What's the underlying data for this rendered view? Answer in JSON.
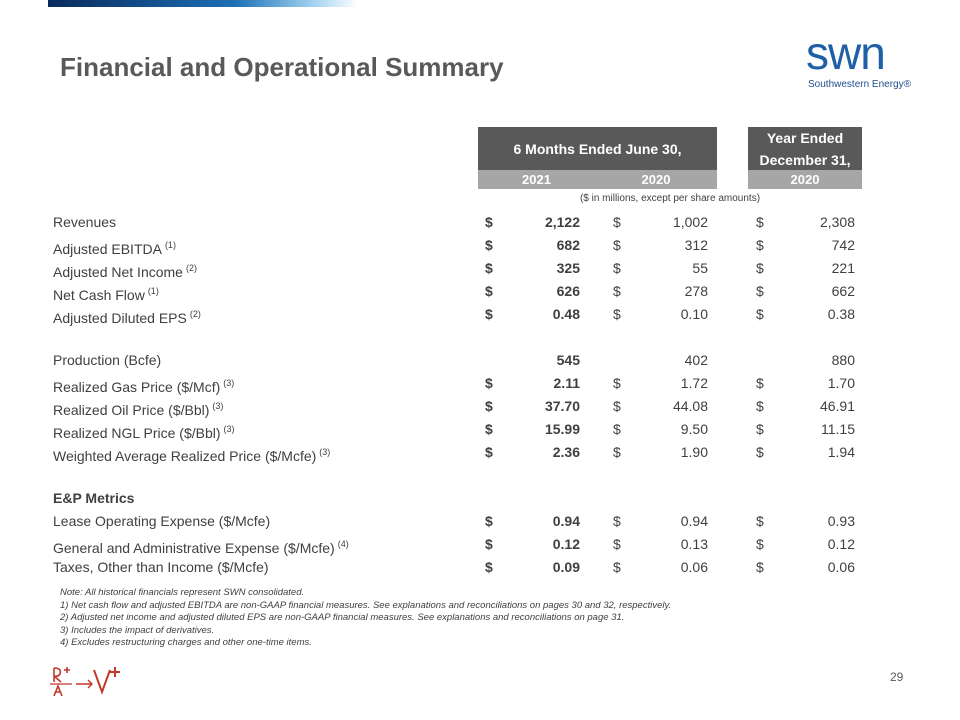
{
  "header": {
    "title": "Financial and Operational Summary",
    "logo": "swn",
    "logo_tagline": "Southwestern Energy®"
  },
  "table": {
    "group_headers": [
      "6 Months Ended June 30,",
      "Year Ended December 31,"
    ],
    "years": [
      "2021",
      "2020",
      "2020"
    ],
    "units_note": "($ in millions, except per share amounts)",
    "sections": [
      {
        "rows": [
          {
            "label": "Revenues",
            "cells": [
              {
                "currency": "$",
                "value": "2,122"
              },
              {
                "currency": "$",
                "value": "1,002"
              },
              {
                "currency": "$",
                "value": "2,308"
              }
            ]
          },
          {
            "label": "Adjusted EBITDA",
            "ref": "(1)",
            "cells": [
              {
                "currency": "$",
                "value": "682"
              },
              {
                "currency": "$",
                "value": "312"
              },
              {
                "currency": "$",
                "value": "742"
              }
            ]
          },
          {
            "label": "Adjusted Net Income",
            "ref": "(2)",
            "cells": [
              {
                "currency": "$",
                "value": "325"
              },
              {
                "currency": "$",
                "value": "55"
              },
              {
                "currency": "$",
                "value": "221"
              }
            ]
          },
          {
            "label": "Net Cash Flow",
            "ref": "(1)",
            "cells": [
              {
                "currency": "$",
                "value": "626"
              },
              {
                "currency": "$",
                "value": "278"
              },
              {
                "currency": "$",
                "value": "662"
              }
            ]
          },
          {
            "label": "Adjusted Diluted EPS",
            "ref": "(2)",
            "cells": [
              {
                "currency": "$",
                "value": "0.48"
              },
              {
                "currency": "$",
                "value": "0.10"
              },
              {
                "currency": "$",
                "value": "0.38"
              }
            ]
          }
        ]
      },
      {
        "rows": [
          {
            "label": "Production (Bcfe)",
            "cells": [
              {
                "value": "545"
              },
              {
                "value": "402"
              },
              {
                "value": "880"
              }
            ]
          },
          {
            "label": "Realized Gas Price ($/Mcf)",
            "ref": "(3)",
            "cells": [
              {
                "currency": "$",
                "value": "2.11"
              },
              {
                "currency": "$",
                "value": "1.72"
              },
              {
                "currency": "$",
                "value": "1.70"
              }
            ]
          },
          {
            "label": "Realized Oil Price ($/Bbl)",
            "ref": "(3)",
            "cells": [
              {
                "currency": "$",
                "value": "37.70"
              },
              {
                "currency": "$",
                "value": "44.08"
              },
              {
                "currency": "$",
                "value": "46.91"
              }
            ]
          },
          {
            "label": "Realized NGL Price ($/Bbl)",
            "ref": "(3)",
            "cells": [
              {
                "currency": "$",
                "value": "15.99"
              },
              {
                "currency": "$",
                "value": "9.50"
              },
              {
                "currency": "$",
                "value": "11.15"
              }
            ]
          },
          {
            "label": "Weighted Average Realized Price ($/Mcfe)",
            "ref": "(3)",
            "cells": [
              {
                "currency": "$",
                "value": "2.36"
              },
              {
                "currency": "$",
                "value": "1.90"
              },
              {
                "currency": "$",
                "value": "1.94"
              }
            ]
          }
        ]
      },
      {
        "heading": "E&P Metrics",
        "rows": [
          {
            "label": "Lease Operating Expense ($/Mcfe)",
            "cells": [
              {
                "currency": "$",
                "value": "0.94"
              },
              {
                "currency": "$",
                "value": "0.94"
              },
              {
                "currency": "$",
                "value": "0.93"
              }
            ]
          },
          {
            "label": "General and Administrative Expense ($/Mcfe)",
            "ref": "(4)",
            "cells": [
              {
                "currency": "$",
                "value": "0.12"
              },
              {
                "currency": "$",
                "value": "0.13"
              },
              {
                "currency": "$",
                "value": "0.12"
              }
            ]
          },
          {
            "label": "Taxes, Other than Income ($/Mcfe)",
            "cells": [
              {
                "currency": "$",
                "value": "0.09"
              },
              {
                "currency": "$",
                "value": "0.06"
              },
              {
                "currency": "$",
                "value": "0.06"
              }
            ]
          }
        ]
      }
    ]
  },
  "footnotes": [
    "Note: All historical financials represent SWN consolidated.",
    "1) Net cash flow and adjusted EBITDA are non-GAAP financial measures.  See explanations and reconciliations on pages 30 and 32, respectively.",
    "2) Adjusted net income and adjusted diluted EPS are non-GAAP financial measures. See explanations and reconciliations on page 31.",
    "3) Includes the impact of derivatives.",
    "4) Excludes restructuring charges and other one-time items."
  ],
  "page_number": "29"
}
